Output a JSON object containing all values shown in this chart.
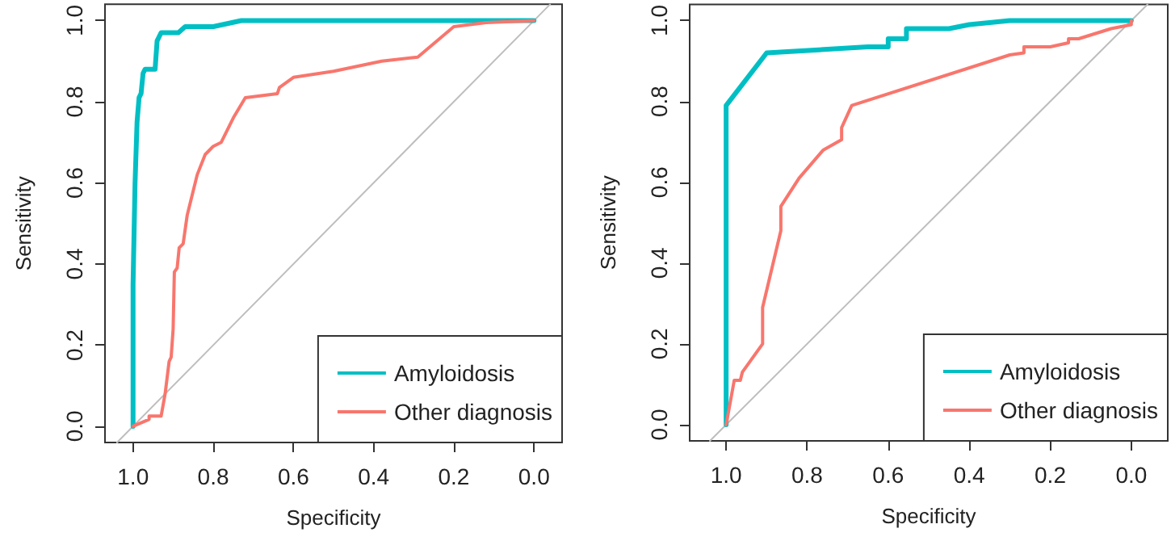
{
  "chart_data": [
    {
      "type": "line",
      "xlabel": "Specificity",
      "ylabel": "Sensitivity",
      "xlim": [
        1.07,
        -0.07
      ],
      "ylim": [
        -0.04,
        1.04
      ],
      "xticks": [
        {
          "value": 1,
          "label": "1.0"
        },
        {
          "value": 0.8,
          "label": "0.8"
        },
        {
          "value": 0.6,
          "label": "0.6"
        },
        {
          "value": 0.4,
          "label": "0.4"
        },
        {
          "value": 0.2,
          "label": "0.2"
        },
        {
          "value": 0,
          "label": "0.0"
        }
      ],
      "yticks": [
        {
          "value": 0,
          "label": "0.0"
        },
        {
          "value": 0.2,
          "label": "0.2"
        },
        {
          "value": 0.4,
          "label": "0.4"
        },
        {
          "value": 0.6,
          "label": "0.6"
        },
        {
          "value": 0.8,
          "label": "0.8"
        },
        {
          "value": 1,
          "label": "1.0"
        }
      ],
      "grid": false,
      "legend": "bottom right",
      "marker": "none",
      "line_style": "solid",
      "series": [
        {
          "color": "#bebebe",
          "x": [
            1.04,
            -0.04
          ],
          "values": [
            -0.04,
            1.04
          ]
        },
        {
          "name": "Amyloidosis",
          "color": "#00bfc4",
          "x": [
            1,
            1,
            0.995,
            0.99,
            0.985,
            0.98,
            0.975,
            0.97,
            0.945,
            0.94,
            0.93,
            0.887,
            0.87,
            0.8,
            0.73,
            0
          ],
          "values": [
            0,
            0.35,
            0.6,
            0.75,
            0.81,
            0.82,
            0.87,
            0.88,
            0.88,
            0.95,
            0.97,
            0.97,
            0.985,
            0.985,
            1,
            1
          ]
        },
        {
          "name": "Other diagnosis",
          "color": "#f8766d",
          "x": [
            1,
            0.96,
            0.96,
            0.93,
            0.92,
            0.91,
            0.905,
            0.9,
            0.897,
            0.89,
            0.885,
            0.875,
            0.865,
            0.855,
            0.84,
            0.82,
            0.81,
            0.8,
            0.78,
            0.75,
            0.72,
            0.64,
            0.635,
            0.6,
            0.5,
            0.38,
            0.29,
            0.2,
            0.12,
            0
          ],
          "values": [
            0,
            0.017,
            0.025,
            0.025,
            0.08,
            0.16,
            0.17,
            0.24,
            0.38,
            0.39,
            0.44,
            0.45,
            0.52,
            0.56,
            0.62,
            0.67,
            0.68,
            0.69,
            0.7,
            0.76,
            0.81,
            0.82,
            0.835,
            0.86,
            0.875,
            0.9,
            0.91,
            0.985,
            0.995,
            1
          ]
        }
      ]
    },
    {
      "type": "line",
      "xlabel": "Specificity",
      "ylabel": "Sensitivity",
      "xlim": [
        1.09,
        -0.09
      ],
      "ylim": [
        -0.04,
        1.04
      ],
      "xticks": [
        {
          "value": 1,
          "label": "1.0"
        },
        {
          "value": 0.8,
          "label": "0.8"
        },
        {
          "value": 0.6,
          "label": "0.6"
        },
        {
          "value": 0.4,
          "label": "0.4"
        },
        {
          "value": 0.2,
          "label": "0.2"
        },
        {
          "value": 0,
          "label": "0.0"
        }
      ],
      "yticks": [
        {
          "value": 0,
          "label": "0.0"
        },
        {
          "value": 0.2,
          "label": "0.2"
        },
        {
          "value": 0.4,
          "label": "0.4"
        },
        {
          "value": 0.6,
          "label": "0.6"
        },
        {
          "value": 0.8,
          "label": "0.8"
        },
        {
          "value": 1,
          "label": "1.0"
        }
      ],
      "grid": false,
      "legend": "bottom right",
      "marker": "none",
      "line_style": "solid",
      "series": [
        {
          "color": "#bebebe",
          "x": [
            1.04,
            -0.04
          ],
          "values": [
            -0.04,
            1.04
          ]
        },
        {
          "name": "Amyloidosis",
          "color": "#00bfc4",
          "x": [
            1,
            1,
            0.9,
            0.65,
            0.6,
            0.6,
            0.555,
            0.555,
            0.45,
            0.4,
            0.3,
            0
          ],
          "values": [
            0,
            0.79,
            0.92,
            0.935,
            0.935,
            0.955,
            0.955,
            0.98,
            0.98,
            0.99,
            1,
            1
          ]
        },
        {
          "name": "Other diagnosis",
          "color": "#f8766d",
          "x": [
            1,
            0.98,
            0.965,
            0.96,
            0.91,
            0.91,
            0.865,
            0.865,
            0.82,
            0.76,
            0.715,
            0.715,
            0.69,
            0.3,
            0.265,
            0.265,
            0.2,
            0.155,
            0.155,
            0.13,
            0.05,
            0,
            0
          ],
          "values": [
            0,
            0.11,
            0.11,
            0.13,
            0.2,
            0.29,
            0.48,
            0.54,
            0.61,
            0.68,
            0.705,
            0.735,
            0.79,
            0.915,
            0.92,
            0.935,
            0.935,
            0.945,
            0.955,
            0.955,
            0.98,
            0.99,
            1
          ]
        }
      ]
    }
  ]
}
